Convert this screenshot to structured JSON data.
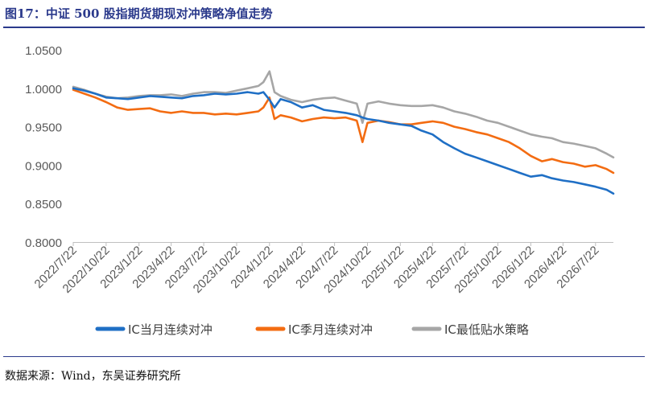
{
  "figure": {
    "title": "图17：中证 500 股指期货期现对冲策略净值走势",
    "source": "数据来源：Wind，东吴证券研究所"
  },
  "chart_data": {
    "type": "line",
    "xlabel": "",
    "ylabel": "",
    "ylim": [
      0.8,
      1.05
    ],
    "yticks": [
      "0.8000",
      "0.8500",
      "0.9000",
      "0.9500",
      "1.0000",
      "1.0500"
    ],
    "xticks": [
      "2022/7/22",
      "2022/10/22",
      "2023/1/22",
      "2023/4/22",
      "2023/7/22",
      "2023/10/22",
      "2024/1/22",
      "2024/4/22",
      "2024/7/22",
      "2024/10/22",
      "2025/1/22",
      "2025/4/22",
      "2025/7/22",
      "2025/10/22",
      "2026/1/22",
      "2026/4/22",
      "2026/7/22"
    ],
    "legend_position": "bottom",
    "grid": false,
    "series": [
      {
        "name": "IC当月连续对冲",
        "color": "#1f6fc5",
        "x": [
          "2022/7/22",
          "2022/8/22",
          "2022/9/22",
          "2022/10/22",
          "2022/11/22",
          "2022/12/22",
          "2023/1/22",
          "2023/2/22",
          "2023/3/22",
          "2023/4/22",
          "2023/5/22",
          "2023/6/22",
          "2023/7/22",
          "2023/8/22",
          "2023/9/22",
          "2023/10/22",
          "2023/11/22",
          "2023/12/22",
          "2024/1/5",
          "2024/1/22",
          "2024/2/5",
          "2024/2/22",
          "2024/3/22",
          "2024/4/22",
          "2024/5/22",
          "2024/6/22",
          "2024/7/22",
          "2024/8/22",
          "2024/9/22",
          "2024/10/8",
          "2024/10/22",
          "2024/11/22",
          "2024/12/22",
          "2025/1/22",
          "2025/2/22",
          "2025/3/22",
          "2025/4/22",
          "2025/5/22",
          "2025/6/22",
          "2025/7/22",
          "2025/8/22",
          "2025/9/22",
          "2025/10/22",
          "2025/11/22",
          "2025/12/22",
          "2026/1/22",
          "2026/2/22",
          "2026/3/22",
          "2026/4/22",
          "2026/5/22",
          "2026/6/22",
          "2026/7/22",
          "2026/8/22",
          "2026/9/10"
        ],
        "values": [
          1.0,
          0.997,
          0.993,
          0.988,
          0.987,
          0.986,
          0.988,
          0.99,
          0.989,
          0.988,
          0.987,
          0.99,
          0.991,
          0.993,
          0.992,
          0.993,
          0.995,
          0.993,
          0.995,
          0.985,
          0.975,
          0.986,
          0.982,
          0.975,
          0.978,
          0.972,
          0.97,
          0.968,
          0.965,
          0.962,
          0.96,
          0.958,
          0.955,
          0.953,
          0.951,
          0.945,
          0.94,
          0.93,
          0.922,
          0.915,
          0.91,
          0.905,
          0.9,
          0.895,
          0.89,
          0.885,
          0.887,
          0.883,
          0.88,
          0.878,
          0.875,
          0.872,
          0.868,
          0.863
        ]
      },
      {
        "name": "IC季月连续对冲",
        "color": "#f36c12",
        "x": [
          "2022/7/22",
          "2022/8/22",
          "2022/9/22",
          "2022/10/22",
          "2022/11/22",
          "2022/12/22",
          "2023/1/22",
          "2023/2/22",
          "2023/3/22",
          "2023/4/22",
          "2023/5/22",
          "2023/6/22",
          "2023/7/22",
          "2023/8/22",
          "2023/9/22",
          "2023/10/22",
          "2023/11/22",
          "2023/12/22",
          "2024/1/5",
          "2024/1/22",
          "2024/2/5",
          "2024/2/22",
          "2024/3/22",
          "2024/4/22",
          "2024/5/22",
          "2024/6/22",
          "2024/7/22",
          "2024/8/22",
          "2024/9/22",
          "2024/10/8",
          "2024/10/22",
          "2024/11/22",
          "2024/12/22",
          "2025/1/22",
          "2025/2/22",
          "2025/3/22",
          "2025/4/22",
          "2025/5/22",
          "2025/6/22",
          "2025/7/22",
          "2025/8/22",
          "2025/9/22",
          "2025/10/22",
          "2025/11/22",
          "2025/12/22",
          "2026/1/22",
          "2026/2/22",
          "2026/3/22",
          "2026/4/22",
          "2026/5/22",
          "2026/6/22",
          "2026/7/22",
          "2026/8/22",
          "2026/9/10"
        ],
        "values": [
          0.998,
          0.993,
          0.988,
          0.982,
          0.975,
          0.972,
          0.973,
          0.974,
          0.97,
          0.968,
          0.97,
          0.968,
          0.968,
          0.966,
          0.967,
          0.966,
          0.968,
          0.97,
          0.975,
          0.988,
          0.96,
          0.965,
          0.962,
          0.957,
          0.96,
          0.962,
          0.961,
          0.962,
          0.958,
          0.93,
          0.955,
          0.958,
          0.956,
          0.953,
          0.953,
          0.955,
          0.957,
          0.955,
          0.95,
          0.947,
          0.943,
          0.94,
          0.935,
          0.93,
          0.922,
          0.912,
          0.905,
          0.908,
          0.904,
          0.902,
          0.898,
          0.9,
          0.895,
          0.89
        ]
      },
      {
        "name": "IC最低贴水策略",
        "color": "#a6a6a6",
        "x": [
          "2022/7/22",
          "2022/8/22",
          "2022/9/22",
          "2022/10/22",
          "2022/11/22",
          "2022/12/22",
          "2023/1/22",
          "2023/2/22",
          "2023/3/22",
          "2023/4/22",
          "2023/5/22",
          "2023/6/22",
          "2023/7/22",
          "2023/8/22",
          "2023/9/22",
          "2023/10/22",
          "2023/11/22",
          "2023/12/22",
          "2024/1/5",
          "2024/1/22",
          "2024/2/5",
          "2024/2/22",
          "2024/3/22",
          "2024/4/22",
          "2024/5/22",
          "2024/6/22",
          "2024/7/22",
          "2024/8/22",
          "2024/9/22",
          "2024/10/8",
          "2024/10/22",
          "2024/11/22",
          "2024/12/22",
          "2025/1/22",
          "2025/2/22",
          "2025/3/22",
          "2025/4/22",
          "2025/5/22",
          "2025/6/22",
          "2025/7/22",
          "2025/8/22",
          "2025/9/22",
          "2025/10/22",
          "2025/11/22",
          "2025/12/22",
          "2026/1/22",
          "2026/2/22",
          "2026/3/22",
          "2026/4/22",
          "2026/5/22",
          "2026/6/22",
          "2026/7/22",
          "2026/8/22",
          "2026/9/10"
        ],
        "values": [
          1.002,
          0.998,
          0.993,
          0.989,
          0.987,
          0.988,
          0.99,
          0.991,
          0.991,
          0.992,
          0.99,
          0.993,
          0.995,
          0.995,
          0.994,
          0.997,
          1.0,
          1.003,
          1.008,
          1.022,
          0.995,
          0.99,
          0.985,
          0.982,
          0.985,
          0.987,
          0.988,
          0.984,
          0.98,
          0.955,
          0.98,
          0.983,
          0.98,
          0.978,
          0.977,
          0.977,
          0.978,
          0.975,
          0.97,
          0.967,
          0.963,
          0.958,
          0.955,
          0.95,
          0.945,
          0.94,
          0.937,
          0.935,
          0.93,
          0.928,
          0.925,
          0.922,
          0.915,
          0.91
        ]
      }
    ]
  }
}
